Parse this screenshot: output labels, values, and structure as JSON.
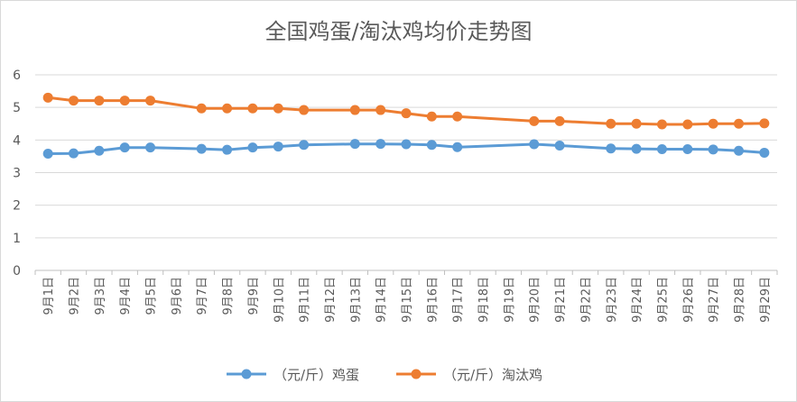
{
  "chart_data": {
    "type": "line",
    "title": "全国鸡蛋/淘汰鸡均价走势图",
    "xlabel": "",
    "ylabel": "",
    "ylim": [
      0,
      6
    ],
    "yticks": [
      0,
      1,
      2,
      3,
      4,
      5,
      6
    ],
    "grid": "horizontal",
    "legend_position": "bottom",
    "categories": [
      "9月1日",
      "9月2日",
      "9月3日",
      "9月4日",
      "9月5日",
      "9月6日",
      "9月7日",
      "9月8日",
      "9月9日",
      "9月10日",
      "9月11日",
      "9月12日",
      "9月13日",
      "9月14日",
      "9月15日",
      "9月16日",
      "9月17日",
      "9月18日",
      "9月19日",
      "9月20日",
      "9月21日",
      "9月22日",
      "9月23日",
      "9月24日",
      "9月25日",
      "9月26日",
      "9月27日",
      "9月28日",
      "9月29日"
    ],
    "series": [
      {
        "name": "（元/斤）鸡蛋",
        "color": "#5b9bd5",
        "values": [
          3.58,
          3.59,
          3.67,
          3.77,
          3.77,
          null,
          3.73,
          3.7,
          3.77,
          3.8,
          3.85,
          null,
          3.88,
          3.88,
          3.87,
          3.85,
          3.78,
          null,
          null,
          3.87,
          3.83,
          null,
          3.74,
          3.73,
          3.72,
          3.72,
          3.71,
          3.67,
          3.61
        ]
      },
      {
        "name": "（元/斤）淘汰鸡",
        "color": "#ed7d31",
        "values": [
          5.3,
          5.21,
          5.21,
          5.21,
          5.21,
          null,
          4.97,
          4.97,
          4.97,
          4.97,
          4.92,
          null,
          4.92,
          4.92,
          4.82,
          4.72,
          4.72,
          null,
          null,
          4.58,
          4.58,
          null,
          4.5,
          4.5,
          4.48,
          4.48,
          4.5,
          4.5,
          4.51
        ]
      }
    ]
  }
}
